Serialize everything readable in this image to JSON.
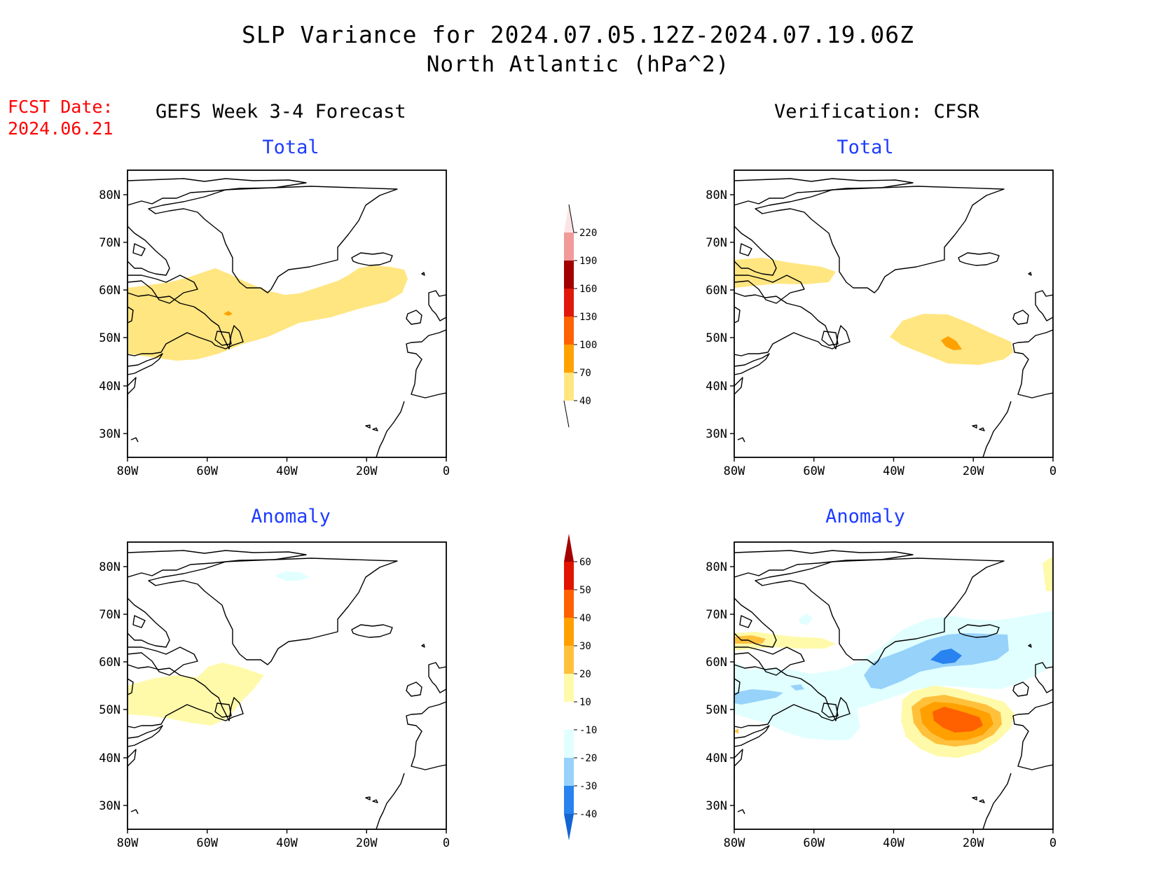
{
  "title": {
    "line1": "SLP Variance for 2024.07.05.12Z-2024.07.19.06Z",
    "line2": "North Atlantic (hPa^2)"
  },
  "fcst": {
    "label": "FCST Date:",
    "date": "2024.06.21"
  },
  "columns": {
    "left": "GEFS Week 3-4 Forecast",
    "right": "Verification: CFSR"
  },
  "rows": {
    "top": "Total",
    "bottom": "Anomaly"
  },
  "axes": {
    "lat_labels": [
      "80N",
      "70N",
      "60N",
      "50N",
      "40N",
      "30N"
    ],
    "lon_labels": [
      "80W",
      "60W",
      "40W",
      "20W",
      "0"
    ]
  },
  "colorbars": {
    "total": {
      "levels": [
        "40",
        "70",
        "100",
        "130",
        "160",
        "190",
        "220"
      ],
      "colors": [
        "#ffe681",
        "#ffa100",
        "#ff6200",
        "#e0180c",
        "#a20000",
        "#f19a9a",
        "#fde4e4"
      ]
    },
    "anomaly": {
      "levels": [
        "-40",
        "-30",
        "-20",
        "-10",
        "10",
        "20",
        "30",
        "40",
        "50",
        "60"
      ],
      "colors": [
        "#1464d2",
        "#2882f0",
        "#96d2fa",
        "#e1ffff",
        "#ffffff",
        "#fffaaa",
        "#ffc03c",
        "#ffa000",
        "#ff6000",
        "#e11400",
        "#a50000"
      ]
    }
  },
  "colors": {
    "title_text": "#000000",
    "fcst_text": "#ff0000",
    "subtitle_text": "#1e3cff",
    "coast": "#000000"
  }
}
